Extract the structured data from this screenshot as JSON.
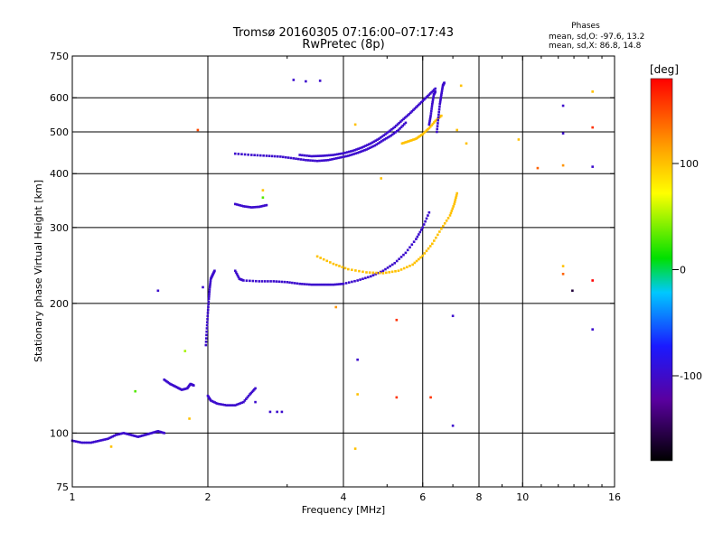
{
  "chart_data": {
    "type": "scatter",
    "title_line1": "Tromsø 20160305 07:16:00–07:17:43",
    "title_line2": "RwPretec (8p)",
    "stats": {
      "heading": "Phases",
      "line_o": "mean, sd,O: -97.6, 13.2",
      "line_x": "mean, sd,X:  86.8, 14.8"
    },
    "xlabel": "Frequency [MHz]",
    "ylabel": "Stationary phase Virtual Height [km]",
    "x_scale": "log",
    "y_scale": "log",
    "xlim": [
      1,
      16
    ],
    "ylim": [
      75,
      750
    ],
    "xticks": [
      {
        "v": 1,
        "label": "1"
      },
      {
        "v": 2,
        "label": "2"
      },
      {
        "v": 4,
        "label": "4"
      },
      {
        "v": 6,
        "label": "6"
      },
      {
        "v": 8,
        "label": "8"
      },
      {
        "v": 10,
        "label": "10"
      },
      {
        "v": 16,
        "label": "16"
      }
    ],
    "yticks": [
      {
        "v": 75,
        "label": "75"
      },
      {
        "v": 100,
        "label": "100"
      },
      {
        "v": 200,
        "label": "200"
      },
      {
        "v": 300,
        "label": "300"
      },
      {
        "v": 400,
        "label": "400"
      },
      {
        "v": 500,
        "label": "500"
      },
      {
        "v": 600,
        "label": "600"
      },
      {
        "v": 750,
        "label": "750"
      }
    ],
    "grid_x": [
      2,
      4,
      6,
      8,
      10
    ],
    "grid_y": [
      100,
      200,
      300,
      400,
      500,
      600
    ],
    "colorbar": {
      "unit": "[deg]",
      "range": [
        -180,
        180
      ],
      "ticks": [
        {
          "v": 100,
          "label": "100"
        },
        {
          "v": 0,
          "label": "0"
        },
        {
          "v": -100,
          "label": "-100"
        }
      ]
    },
    "series": [
      {
        "trace": [
          [
            1,
            96
          ],
          [
            1.05,
            95
          ],
          [
            1.1,
            95
          ],
          [
            1.15,
            96
          ],
          [
            1.2,
            97
          ],
          [
            1.25,
            99
          ],
          [
            1.3,
            100
          ],
          [
            1.35,
            99
          ],
          [
            1.4,
            98
          ],
          [
            1.45,
            99
          ],
          [
            1.5,
            100
          ],
          [
            1.55,
            101
          ],
          [
            1.6,
            100
          ]
        ],
        "phase": -100
      },
      {
        "trace": [
          [
            1.6,
            133
          ],
          [
            1.65,
            130
          ],
          [
            1.7,
            128
          ],
          [
            1.75,
            126
          ],
          [
            1.8,
            127
          ],
          [
            1.83,
            130
          ],
          [
            1.86,
            129
          ]
        ],
        "phase": -100
      },
      {
        "trace": [
          [
            1.98,
            160
          ],
          [
            1.99,
            175
          ],
          [
            2.0,
            190
          ],
          [
            2.01,
            205
          ],
          [
            2.02,
            218
          ],
          [
            2.03,
            228
          ],
          [
            2.05,
            233
          ],
          [
            2.07,
            238
          ]
        ],
        "phase": -100
      },
      {
        "trace": [
          [
            2.0,
            122
          ],
          [
            2.03,
            119
          ],
          [
            2.1,
            117
          ],
          [
            2.2,
            116
          ],
          [
            2.3,
            116
          ],
          [
            2.4,
            118
          ],
          [
            2.48,
            123
          ],
          [
            2.55,
            127
          ]
        ],
        "phase": -100
      },
      {
        "trace": [
          [
            2.3,
            238
          ],
          [
            2.35,
            228
          ],
          [
            2.4,
            226
          ],
          [
            2.6,
            225
          ],
          [
            2.8,
            225
          ],
          [
            3.0,
            224
          ],
          [
            3.2,
            222
          ],
          [
            3.4,
            221
          ],
          [
            3.6,
            221
          ],
          [
            3.8,
            221
          ],
          [
            4.0,
            222
          ],
          [
            4.3,
            226
          ],
          [
            4.6,
            231
          ],
          [
            4.9,
            238
          ],
          [
            5.2,
            248
          ],
          [
            5.5,
            262
          ],
          [
            5.8,
            282
          ],
          [
            6.0,
            300
          ],
          [
            6.2,
            325
          ]
        ],
        "phase": -100
      },
      {
        "trace": [
          [
            3.5,
            257
          ],
          [
            3.8,
            247
          ],
          [
            4.1,
            240
          ],
          [
            4.5,
            236
          ],
          [
            4.9,
            235
          ],
          [
            5.3,
            238
          ],
          [
            5.7,
            246
          ],
          [
            6.0,
            258
          ],
          [
            6.3,
            275
          ],
          [
            6.6,
            298
          ],
          [
            6.9,
            320
          ],
          [
            7.05,
            340
          ],
          [
            7.15,
            360
          ]
        ],
        "phase": 100
      },
      {
        "trace": [
          [
            2.3,
            445
          ],
          [
            2.5,
            442
          ],
          [
            2.7,
            440
          ],
          [
            2.9,
            438
          ],
          [
            3.1,
            434
          ],
          [
            3.3,
            430
          ],
          [
            3.5,
            428
          ],
          [
            3.7,
            430
          ],
          [
            3.9,
            435
          ],
          [
            4.1,
            440
          ],
          [
            4.3,
            447
          ],
          [
            4.5,
            455
          ],
          [
            4.7,
            465
          ],
          [
            4.9,
            478
          ],
          [
            5.1,
            490
          ],
          [
            5.3,
            505
          ],
          [
            5.5,
            525
          ]
        ],
        "phase": -100
      },
      {
        "trace": [
          [
            3.2,
            442
          ],
          [
            3.4,
            439
          ],
          [
            3.6,
            440
          ],
          [
            3.8,
            442
          ],
          [
            4.0,
            446
          ],
          [
            4.2,
            452
          ],
          [
            4.4,
            460
          ],
          [
            4.6,
            470
          ],
          [
            4.8,
            482
          ],
          [
            5.0,
            497
          ],
          [
            5.2,
            513
          ],
          [
            5.4,
            532
          ],
          [
            5.6,
            550
          ],
          [
            5.8,
            570
          ],
          [
            6.0,
            590
          ],
          [
            6.2,
            610
          ],
          [
            6.4,
            630
          ]
        ],
        "phase": -100
      },
      {
        "trace": [
          [
            2.3,
            340
          ],
          [
            2.4,
            336
          ],
          [
            2.5,
            334
          ],
          [
            2.6,
            335
          ],
          [
            2.7,
            338
          ]
        ],
        "phase": -100
      },
      {
        "trace": [
          [
            5.4,
            470
          ],
          [
            5.6,
            476
          ],
          [
            5.8,
            482
          ],
          [
            6.0,
            494
          ],
          [
            6.2,
            510
          ],
          [
            6.4,
            530
          ],
          [
            6.6,
            545
          ]
        ],
        "phase": 100
      },
      {
        "trace": [
          [
            6.45,
            500
          ],
          [
            6.5,
            540
          ],
          [
            6.55,
            580
          ],
          [
            6.6,
            610
          ],
          [
            6.65,
            640
          ],
          [
            6.7,
            650
          ]
        ],
        "phase": -100
      },
      {
        "trace": [
          [
            6.2,
            520
          ],
          [
            6.25,
            545
          ],
          [
            6.3,
            580
          ],
          [
            6.35,
            610
          ],
          [
            6.4,
            620
          ]
        ],
        "phase": -100
      }
    ],
    "points": [
      {
        "x": 3.1,
        "y": 660,
        "phase": -100
      },
      {
        "x": 3.3,
        "y": 655,
        "phase": -100
      },
      {
        "x": 3.55,
        "y": 657,
        "phase": -100
      },
      {
        "x": 1.9,
        "y": 505,
        "phase": 150
      },
      {
        "x": 4.25,
        "y": 520,
        "phase": 100
      },
      {
        "x": 4.85,
        "y": 390,
        "phase": 100
      },
      {
        "x": 2.65,
        "y": 366,
        "phase": 100
      },
      {
        "x": 2.65,
        "y": 352,
        "phase": 30
      },
      {
        "x": 1.55,
        "y": 214,
        "phase": -100
      },
      {
        "x": 1.95,
        "y": 218,
        "phase": -100
      },
      {
        "x": 1.78,
        "y": 155,
        "phase": 50
      },
      {
        "x": 1.38,
        "y": 125,
        "phase": 30
      },
      {
        "x": 1.82,
        "y": 108,
        "phase": 100
      },
      {
        "x": 2.55,
        "y": 118,
        "phase": -100
      },
      {
        "x": 2.75,
        "y": 112,
        "phase": -100
      },
      {
        "x": 2.85,
        "y": 112,
        "phase": -100
      },
      {
        "x": 2.92,
        "y": 112,
        "phase": -100
      },
      {
        "x": 1.22,
        "y": 93,
        "phase": 100
      },
      {
        "x": 3.85,
        "y": 196,
        "phase": 120
      },
      {
        "x": 4.3,
        "y": 148,
        "phase": -100
      },
      {
        "x": 4.3,
        "y": 123,
        "phase": 100
      },
      {
        "x": 4.25,
        "y": 92,
        "phase": 100
      },
      {
        "x": 5.25,
        "y": 183,
        "phase": 160
      },
      {
        "x": 5.25,
        "y": 121,
        "phase": 160
      },
      {
        "x": 6.25,
        "y": 121,
        "phase": 160
      },
      {
        "x": 7.0,
        "y": 187,
        "phase": -100
      },
      {
        "x": 7.0,
        "y": 104,
        "phase": -100
      },
      {
        "x": 7.3,
        "y": 640,
        "phase": 100
      },
      {
        "x": 7.15,
        "y": 505,
        "phase": 100
      },
      {
        "x": 7.5,
        "y": 470,
        "phase": 100
      },
      {
        "x": 9.8,
        "y": 480,
        "phase": 100
      },
      {
        "x": 10.8,
        "y": 412,
        "phase": 140
      },
      {
        "x": 12.3,
        "y": 575,
        "phase": -100
      },
      {
        "x": 12.3,
        "y": 496,
        "phase": -100
      },
      {
        "x": 12.3,
        "y": 418,
        "phase": 120
      },
      {
        "x": 12.3,
        "y": 244,
        "phase": 100
      },
      {
        "x": 12.3,
        "y": 234,
        "phase": 140
      },
      {
        "x": 14.3,
        "y": 620,
        "phase": 100
      },
      {
        "x": 14.3,
        "y": 512,
        "phase": 160
      },
      {
        "x": 14.3,
        "y": 415,
        "phase": -100
      },
      {
        "x": 14.3,
        "y": 226,
        "phase": 180
      },
      {
        "x": 12.9,
        "y": 214,
        "phase": -160
      },
      {
        "x": 14.3,
        "y": 174,
        "phase": -100
      }
    ]
  }
}
